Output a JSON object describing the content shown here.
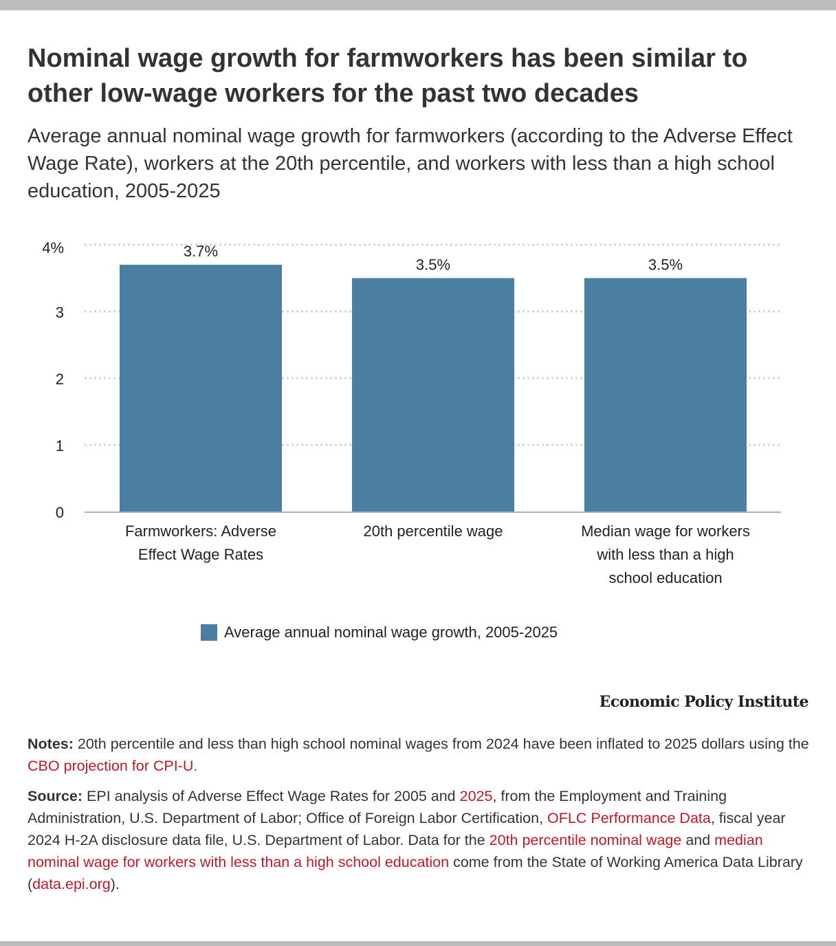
{
  "title": "Nominal wage growth for farmworkers has been similar to other low-wage workers for the past two decades",
  "subtitle": "Average annual nominal wage growth for farmworkers (according to the Adverse Effect Wage Rate), workers at the 20th percentile, and workers with less than a high school education, 2005-2025",
  "chart_data": {
    "type": "bar",
    "categories": [
      [
        "Farmworkers: Adverse",
        "Effect Wage Rates"
      ],
      [
        "20th percentile wage"
      ],
      [
        "Median wage for workers",
        "with less than a high",
        "school education"
      ]
    ],
    "values": [
      3.7,
      3.5,
      3.5
    ],
    "value_labels": [
      "3.7%",
      "3.5%",
      "3.5%"
    ],
    "yticks": [
      0,
      1,
      2,
      3,
      4
    ],
    "ytick_labels": [
      "0",
      "1",
      "2",
      "3",
      "4%"
    ],
    "ylim": [
      0,
      4
    ],
    "grid": true,
    "legend": "bottom-center",
    "series_name": "Average annual nominal wage growth, 2005-2025",
    "color": "#4a7fa1"
  },
  "brand": "Economic Policy Institute",
  "notes": {
    "label": "Notes:",
    "segments": [
      {
        "t": " 20th percentile and less than high school nominal wages from 2024 have been inflated to 2025 dollars using the "
      },
      {
        "t": "CBO projection for CPI-U.",
        "link": true
      }
    ]
  },
  "source": {
    "label": "Source:",
    "segments": [
      {
        "t": " EPI analysis of Adverse Effect Wage Rates for 2005 and "
      },
      {
        "t": "2025",
        "link": true
      },
      {
        "t": ", from the Employment and Training Administration, U.S. Department of Labor; Office of Foreign Labor Certification, "
      },
      {
        "t": "OFLC Performance Data",
        "link": true
      },
      {
        "t": ", fiscal year 2024 H-2A disclosure data file, U.S. Department of Labor. Data for the "
      },
      {
        "t": "20th percentile nominal wage",
        "link": true
      },
      {
        "t": " and "
      },
      {
        "t": "median nominal wage for workers with less than a high school education",
        "link": true
      },
      {
        "t": " come from the State of Working America Data Library ("
      },
      {
        "t": "data.epi.org",
        "link": true
      },
      {
        "t": ")."
      }
    ]
  }
}
